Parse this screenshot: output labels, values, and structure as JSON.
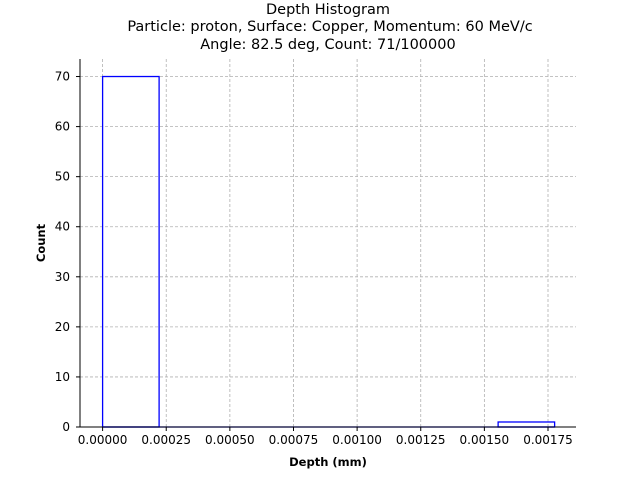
{
  "chart_data": {
    "type": "bar",
    "title_lines": [
      "Depth Histogram",
      "Particle: proton, Surface: Copper, Momentum: 60 MeV/c",
      "Angle: 82.5 deg, Count: 71/100000"
    ],
    "xlabel": "Depth (mm)",
    "ylabel": "Count",
    "xlim": [
      -8.88e-05,
      0.00186
    ],
    "ylim": [
      0,
      73.5
    ],
    "grid": true,
    "histtype": "step",
    "bar_color": "#0000ff",
    "bins": [
      {
        "x0": 0.0,
        "x1": 0.000222,
        "count": 70
      },
      {
        "x0": 0.000222,
        "x1": 0.000444,
        "count": 0
      },
      {
        "x0": 0.000444,
        "x1": 0.000666,
        "count": 0
      },
      {
        "x0": 0.000666,
        "x1": 0.000888,
        "count": 0
      },
      {
        "x0": 0.000888,
        "x1": 0.00111,
        "count": 0
      },
      {
        "x0": 0.00111,
        "x1": 0.001332,
        "count": 0
      },
      {
        "x0": 0.001332,
        "x1": 0.001554,
        "count": 0
      },
      {
        "x0": 0.001554,
        "x1": 0.001776,
        "count": 1
      }
    ],
    "x_ticks": [
      {
        "value": 0.0,
        "label": "0.00000"
      },
      {
        "value": 0.00025,
        "label": "0.00025"
      },
      {
        "value": 0.0005,
        "label": "0.00050"
      },
      {
        "value": 0.00075,
        "label": "0.00075"
      },
      {
        "value": 0.001,
        "label": "0.00100"
      },
      {
        "value": 0.00125,
        "label": "0.00125"
      },
      {
        "value": 0.0015,
        "label": "0.00150"
      },
      {
        "value": 0.00175,
        "label": "0.00175"
      }
    ],
    "y_ticks": [
      {
        "value": 0,
        "label": "0"
      },
      {
        "value": 10,
        "label": "10"
      },
      {
        "value": 20,
        "label": "20"
      },
      {
        "value": 30,
        "label": "30"
      },
      {
        "value": 40,
        "label": "40"
      },
      {
        "value": 50,
        "label": "50"
      },
      {
        "value": 60,
        "label": "60"
      },
      {
        "value": 70,
        "label": "70"
      }
    ]
  }
}
